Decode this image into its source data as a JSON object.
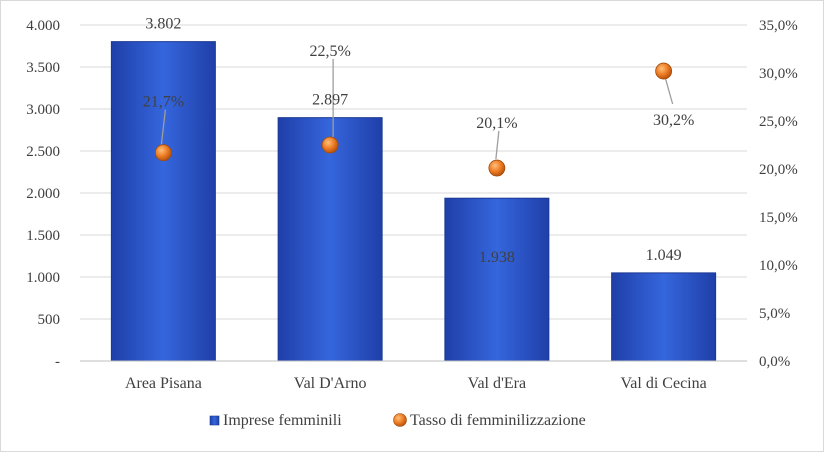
{
  "chart_data": {
    "type": "bar",
    "categories": [
      "Area Pisana",
      "Val D'Arno",
      "Val d'Era",
      "Val di Cecina"
    ],
    "series": [
      {
        "name": "Imprese femminili",
        "type": "bar",
        "axis": "left",
        "values": [
          3802,
          2897,
          1938,
          1049
        ],
        "labels": [
          "3.802",
          "2.897",
          "1.938",
          "1.049"
        ],
        "color": "#2a52c6"
      },
      {
        "name": "Tasso di femminilizzazione",
        "type": "scatter",
        "axis": "right",
        "values": [
          21.7,
          22.5,
          20.1,
          30.2
        ],
        "labels": [
          "21,7%",
          "22,5%",
          "20,1%",
          "30,2%"
        ],
        "color": "#e8731e"
      }
    ],
    "y_left": {
      "ylim": [
        0,
        4000
      ],
      "ticks": [
        0,
        500,
        1000,
        1500,
        2000,
        2500,
        3000,
        3500,
        4000
      ],
      "tick_labels": [
        "-",
        "500",
        "1.000",
        "1.500",
        "2.000",
        "2.500",
        "3.000",
        "3.500",
        "4.000"
      ]
    },
    "y_right": {
      "ylim": [
        0,
        35
      ],
      "ticks": [
        0,
        5,
        10,
        15,
        20,
        25,
        30,
        35
      ],
      "tick_labels": [
        "0,0%",
        "5,0%",
        "10,0%",
        "15,0%",
        "20,0%",
        "25,0%",
        "30,0%",
        "35,0%"
      ]
    },
    "grid": true,
    "legend_position": "bottom"
  }
}
